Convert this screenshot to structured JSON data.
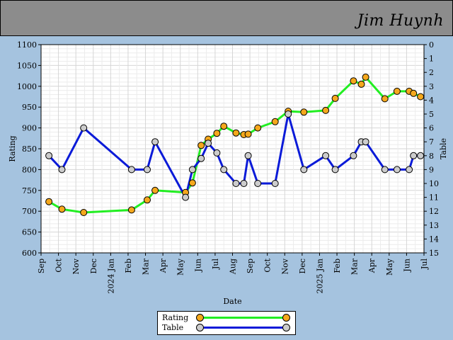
{
  "header": {
    "player_name": "Jim Huynh"
  },
  "chart_data": {
    "type": "line",
    "left_axis": {
      "label": "Rating",
      "range": [
        600,
        1100
      ],
      "ticks": [
        600,
        650,
        700,
        750,
        800,
        850,
        900,
        950,
        1000,
        1050,
        1100
      ]
    },
    "right_axis": {
      "label": "Table",
      "range": [
        0,
        15
      ],
      "reversed": true,
      "ticks": [
        0,
        1,
        2,
        3,
        4,
        5,
        6,
        7,
        8,
        9,
        10,
        11,
        12,
        13,
        14,
        15
      ]
    },
    "xlabel": "Date",
    "x_ticks": [
      {
        "label": "Sep",
        "m": 0
      },
      {
        "label": "Oct",
        "m": 1
      },
      {
        "label": "Nov",
        "m": 2
      },
      {
        "label": "Dec",
        "m": 3
      },
      {
        "label": "2024 Jan",
        "m": 4
      },
      {
        "label": "Feb",
        "m": 5
      },
      {
        "label": "Mar",
        "m": 6
      },
      {
        "label": "Apr",
        "m": 7
      },
      {
        "label": "May",
        "m": 8
      },
      {
        "label": "Jun",
        "m": 9
      },
      {
        "label": "Jul",
        "m": 10
      },
      {
        "label": "Aug",
        "m": 11
      },
      {
        "label": "Sep",
        "m": 12
      },
      {
        "label": "Oct",
        "m": 13
      },
      {
        "label": "Nov",
        "m": 14
      },
      {
        "label": "Dec",
        "m": 15
      },
      {
        "label": "2025 Jan",
        "m": 16
      },
      {
        "label": "Feb",
        "m": 17
      },
      {
        "label": "Mar",
        "m": 18
      },
      {
        "label": "Apr",
        "m": 19
      },
      {
        "label": "May",
        "m": 20
      },
      {
        "label": "Jun",
        "m": 21
      },
      {
        "label": "Jul",
        "m": 22
      }
    ],
    "x_range": [
      0,
      22
    ],
    "series": [
      {
        "name": "Rating",
        "axis": "left",
        "line_color": "#22ee22",
        "marker_color": "#f5a81c",
        "points": [
          [
            0.45,
            723
          ],
          [
            1.2,
            705
          ],
          [
            2.45,
            697
          ],
          [
            5.2,
            703
          ],
          [
            6.1,
            727
          ],
          [
            6.55,
            750
          ],
          [
            8.3,
            745
          ],
          [
            8.7,
            768
          ],
          [
            9.2,
            858
          ],
          [
            9.6,
            873
          ],
          [
            10.1,
            887
          ],
          [
            10.5,
            904
          ],
          [
            11.2,
            888
          ],
          [
            11.65,
            884
          ],
          [
            11.9,
            885
          ],
          [
            12.45,
            900
          ],
          [
            13.45,
            915
          ],
          [
            14.2,
            940
          ],
          [
            15.1,
            938
          ],
          [
            16.35,
            942
          ],
          [
            16.9,
            971
          ],
          [
            17.95,
            1013
          ],
          [
            18.4,
            1005
          ],
          [
            18.65,
            1022
          ],
          [
            19.75,
            970
          ],
          [
            20.45,
            988
          ],
          [
            21.15,
            988
          ],
          [
            21.4,
            983
          ],
          [
            21.8,
            975
          ]
        ]
      },
      {
        "name": "Table",
        "axis": "right",
        "line_color": "#0a1ad8",
        "marker_color": "#cccccc",
        "points": [
          [
            0.45,
            8
          ],
          [
            1.2,
            9
          ],
          [
            2.45,
            6
          ],
          [
            5.2,
            9
          ],
          [
            6.1,
            9
          ],
          [
            6.55,
            7
          ],
          [
            8.3,
            11
          ],
          [
            8.7,
            9
          ],
          [
            9.2,
            8.2
          ],
          [
            9.6,
            7.1
          ],
          [
            10.1,
            7.8
          ],
          [
            10.5,
            9
          ],
          [
            11.2,
            10
          ],
          [
            11.65,
            10
          ],
          [
            11.9,
            8
          ],
          [
            12.45,
            10
          ],
          [
            13.45,
            10
          ],
          [
            14.2,
            5
          ],
          [
            15.1,
            9
          ],
          [
            16.35,
            8
          ],
          [
            16.9,
            9
          ],
          [
            17.95,
            8
          ],
          [
            18.4,
            7
          ],
          [
            18.65,
            7
          ],
          [
            19.75,
            9
          ],
          [
            20.45,
            9
          ],
          [
            21.15,
            9
          ],
          [
            21.4,
            8
          ],
          [
            21.8,
            8
          ]
        ]
      }
    ]
  },
  "legend": {
    "items": [
      {
        "label": "Rating",
        "line_color": "#22ee22",
        "marker_color": "#f5a81c"
      },
      {
        "label": "Table",
        "line_color": "#0a1ad8",
        "marker_color": "#cccccc"
      }
    ]
  }
}
